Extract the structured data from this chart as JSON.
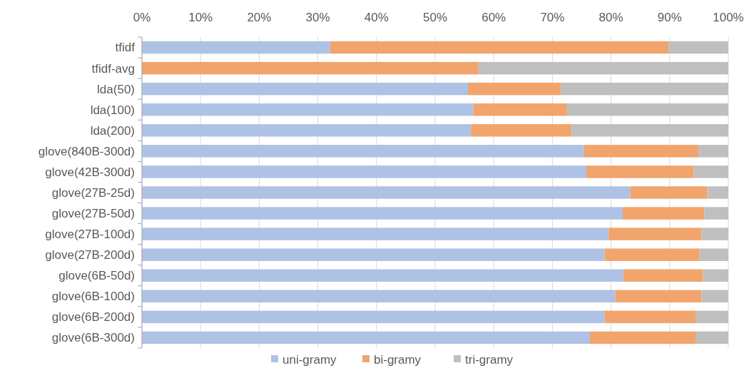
{
  "chart_data": {
    "type": "bar",
    "orientation": "horizontal",
    "stacked": true,
    "categories": [
      "tfidf",
      "tfidf-avg",
      "lda(50)",
      "lda(100)",
      "lda(200)",
      "glove(840B-300d)",
      "glove(42B-300d)",
      "glove(27B-25d)",
      "glove(27B-50d)",
      "glove(27B-100d)",
      "glove(27B-200d)",
      "glove(6B-50d)",
      "glove(6B-100d)",
      "glove(6B-200d)",
      "glove(6B-300d)"
    ],
    "series": [
      {
        "name": "uni-gramy",
        "color": "#aec2e6",
        "values": [
          32.1,
          0,
          55.6,
          56.5,
          56.1,
          75.4,
          75.8,
          83.3,
          82.0,
          79.6,
          78.9,
          82.1,
          80.7,
          78.9,
          76.4
        ]
      },
      {
        "name": "bi-gramy",
        "color": "#f1a46c",
        "values": [
          57.7,
          57.4,
          15.8,
          16.0,
          17.2,
          19.5,
          18.3,
          13.1,
          13.9,
          15.8,
          16.2,
          13.6,
          14.7,
          15.5,
          18.0
        ]
      },
      {
        "name": "tri-gramy",
        "color": "#bfbfbf",
        "values": [
          10.2,
          42.6,
          28.6,
          27.5,
          26.7,
          5.1,
          5.9,
          3.6,
          4.1,
          4.6,
          4.9,
          4.3,
          4.6,
          5.6,
          5.6
        ]
      }
    ],
    "xlim": [
      0,
      100
    ],
    "xticks": [
      {
        "value": 0,
        "label": "0%"
      },
      {
        "value": 10,
        "label": "10%"
      },
      {
        "value": 20,
        "label": "20%"
      },
      {
        "value": 30,
        "label": "30%"
      },
      {
        "value": 40,
        "label": "40%"
      },
      {
        "value": 50,
        "label": "50%"
      },
      {
        "value": 60,
        "label": "60%"
      },
      {
        "value": 70,
        "label": "70%"
      },
      {
        "value": 80,
        "label": "80%"
      },
      {
        "value": 90,
        "label": "90%"
      },
      {
        "value": 100,
        "label": "100%"
      }
    ],
    "grid": "x",
    "legend": "bottom"
  }
}
